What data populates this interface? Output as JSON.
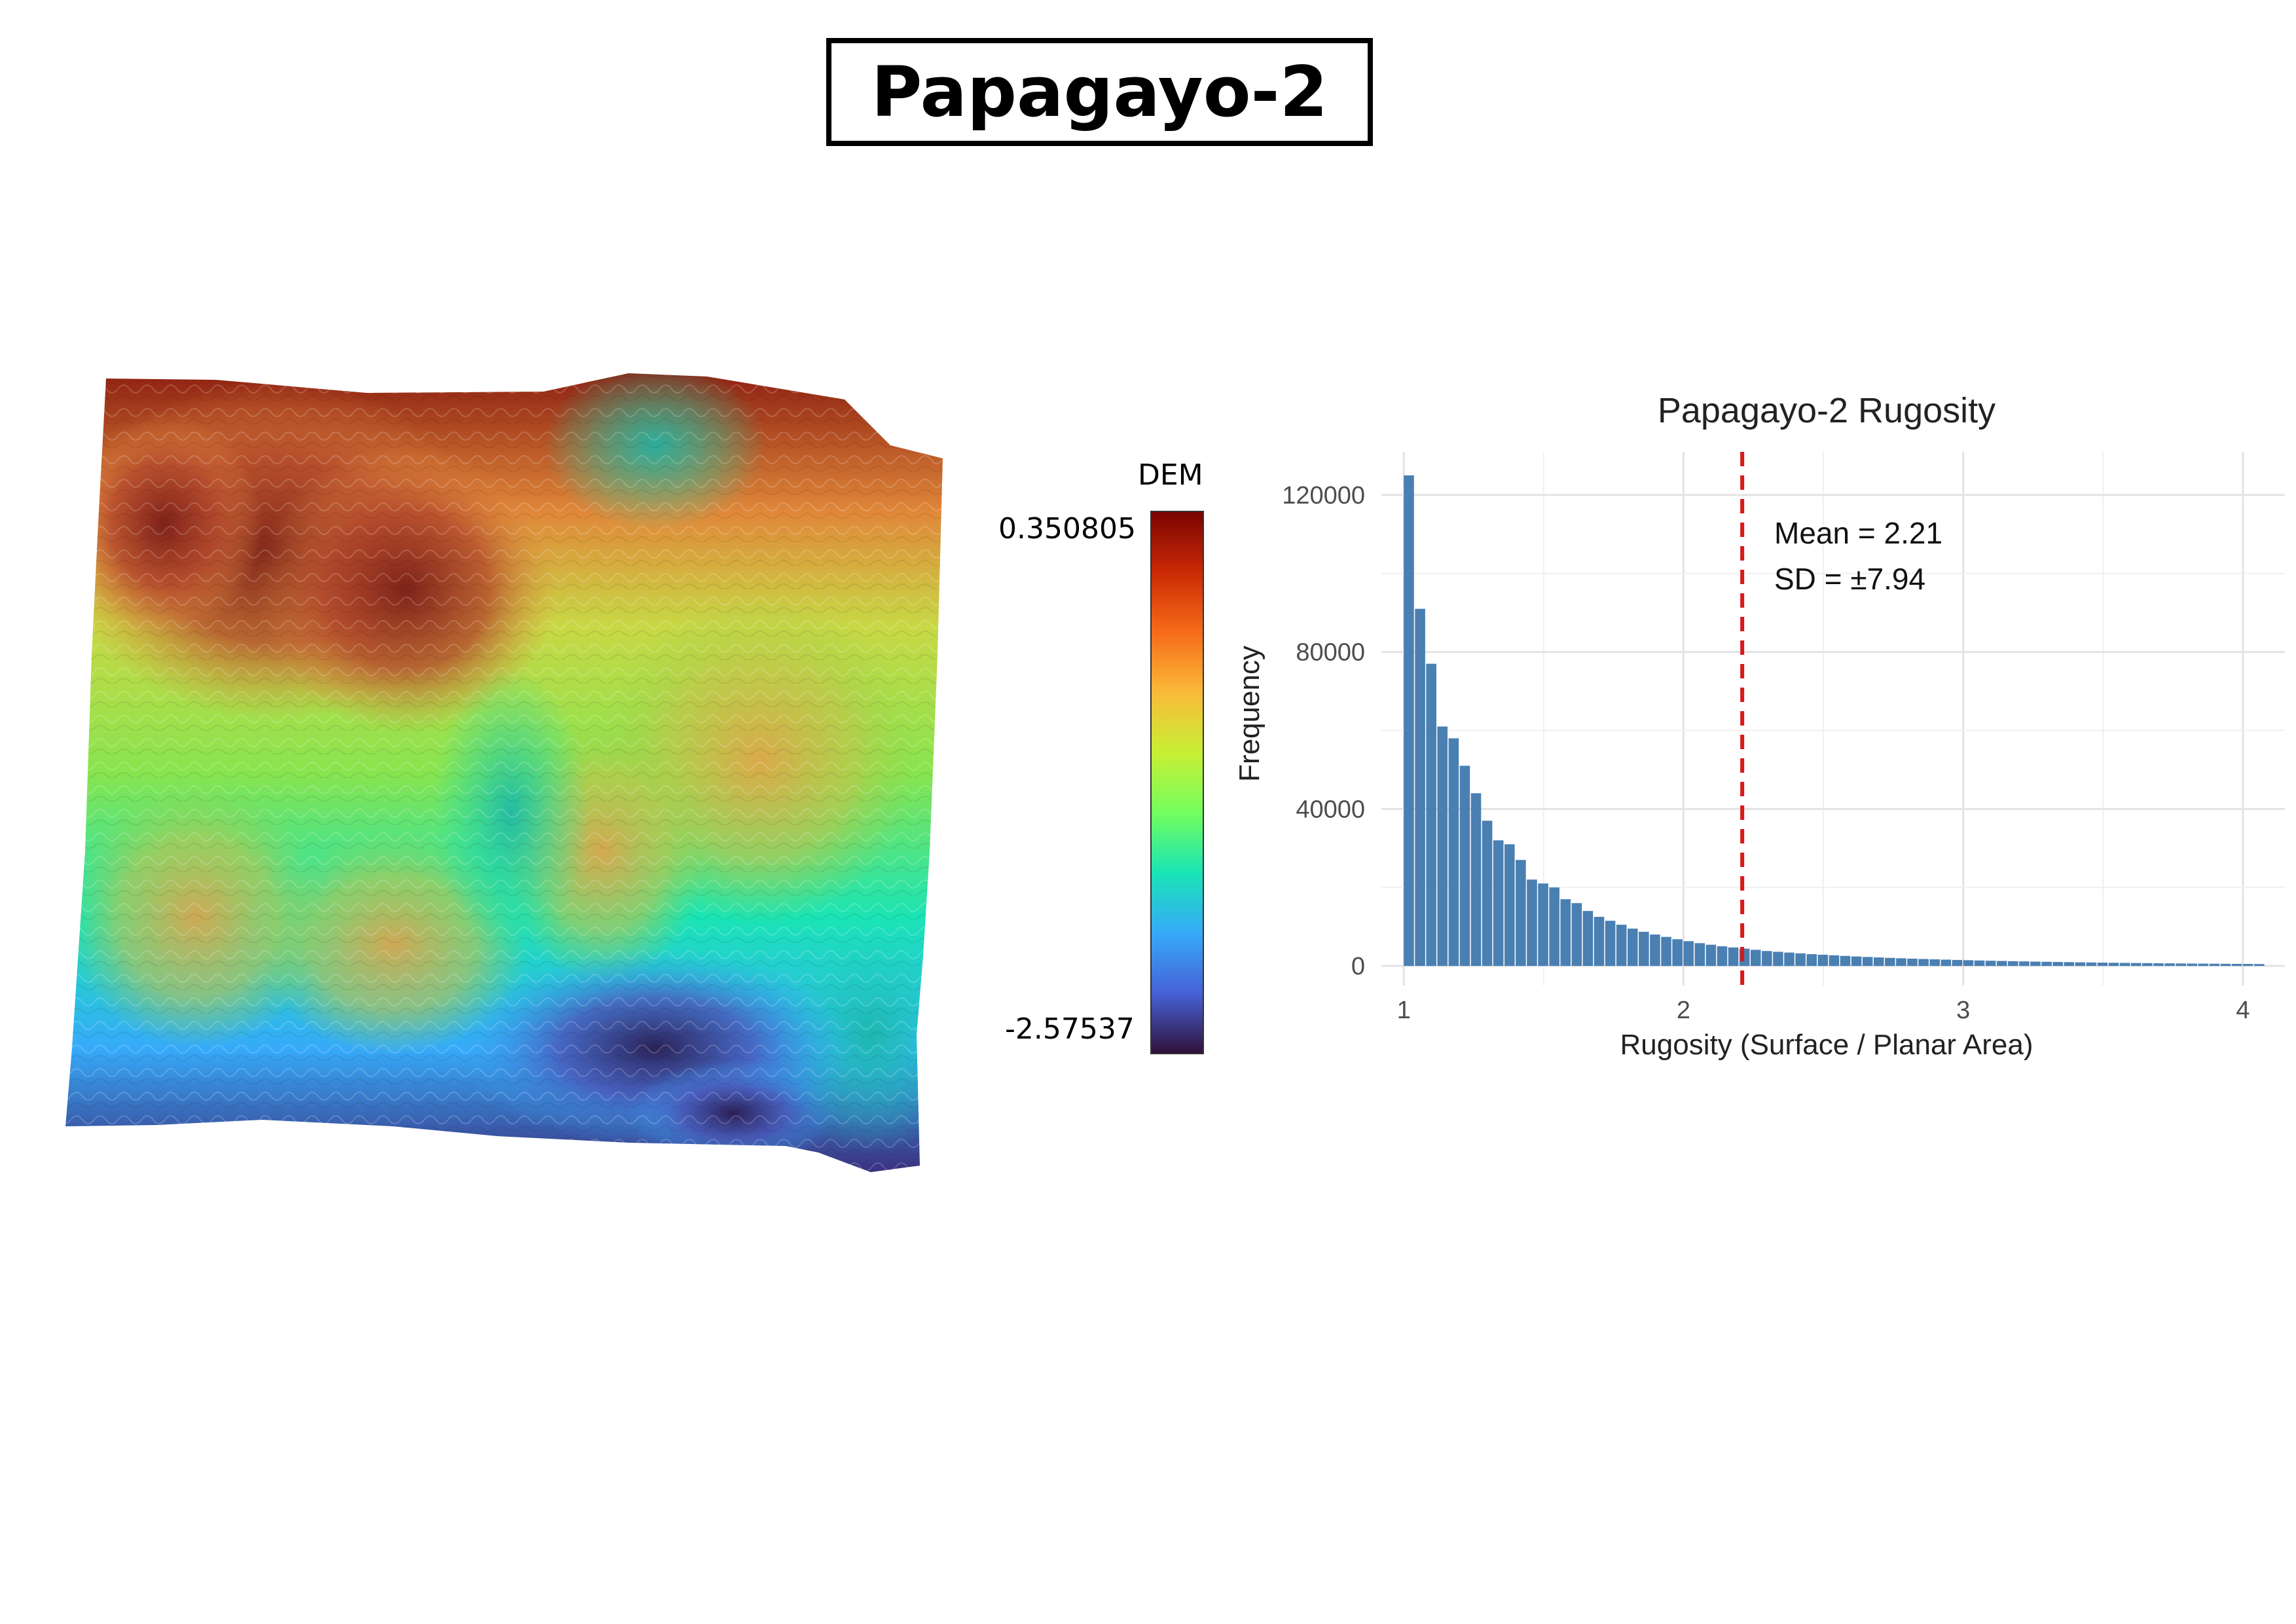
{
  "page_title": "Papagayo-2",
  "dem_map": {
    "legend_title": "DEM",
    "legend_max": "0.350805",
    "legend_min": "-2.57537",
    "colormap": [
      "#30123b",
      "#4662d7",
      "#36aaf9",
      "#1ae4b6",
      "#72fe5e",
      "#c8ef34",
      "#faba39",
      "#f66b19",
      "#ca2a04",
      "#7a0403"
    ]
  },
  "chart_data": {
    "type": "bar",
    "title": "Papagayo-2 Rugosity",
    "xlabel": "Rugosity (Surface / Planar Area)",
    "ylabel": "Frequency",
    "xlim": [
      0.92,
      4.15
    ],
    "ylim": [
      -5000,
      131000
    ],
    "x_ticks": [
      1,
      2,
      3,
      4
    ],
    "y_ticks": [
      0,
      40000,
      80000,
      120000
    ],
    "x_tick_labels": [
      "1",
      "2",
      "3",
      "4"
    ],
    "y_tick_labels": [
      "0",
      "40000",
      "80000",
      "120000"
    ],
    "grid": true,
    "bin_width": 0.04,
    "bin_start": 1.0,
    "values": [
      125000,
      91000,
      77000,
      61000,
      58000,
      51000,
      44000,
      37000,
      32000,
      31000,
      27000,
      22000,
      21000,
      20000,
      17000,
      16000,
      14000,
      12500,
      11500,
      10500,
      9500,
      8700,
      8000,
      7400,
      6800,
      6300,
      5800,
      5400,
      5000,
      4700,
      4400,
      4100,
      3800,
      3600,
      3400,
      3200,
      3000,
      2850,
      2700,
      2550,
      2400,
      2280,
      2160,
      2050,
      1950,
      1850,
      1760,
      1680,
      1600,
      1520,
      1450,
      1380,
      1320,
      1260,
      1200,
      1150,
      1100,
      1050,
      1000,
      960,
      920,
      880,
      840,
      800,
      770,
      740,
      710,
      680,
      650,
      620,
      600,
      580,
      560,
      540,
      520,
      500,
      480
    ],
    "bar_color": "#4a7fb2",
    "mean_line": {
      "x": 2.21,
      "color": "#d7191c",
      "style": "dashed"
    },
    "annotations": [
      "Mean = 2.21",
      "SD = ±7.94"
    ]
  }
}
